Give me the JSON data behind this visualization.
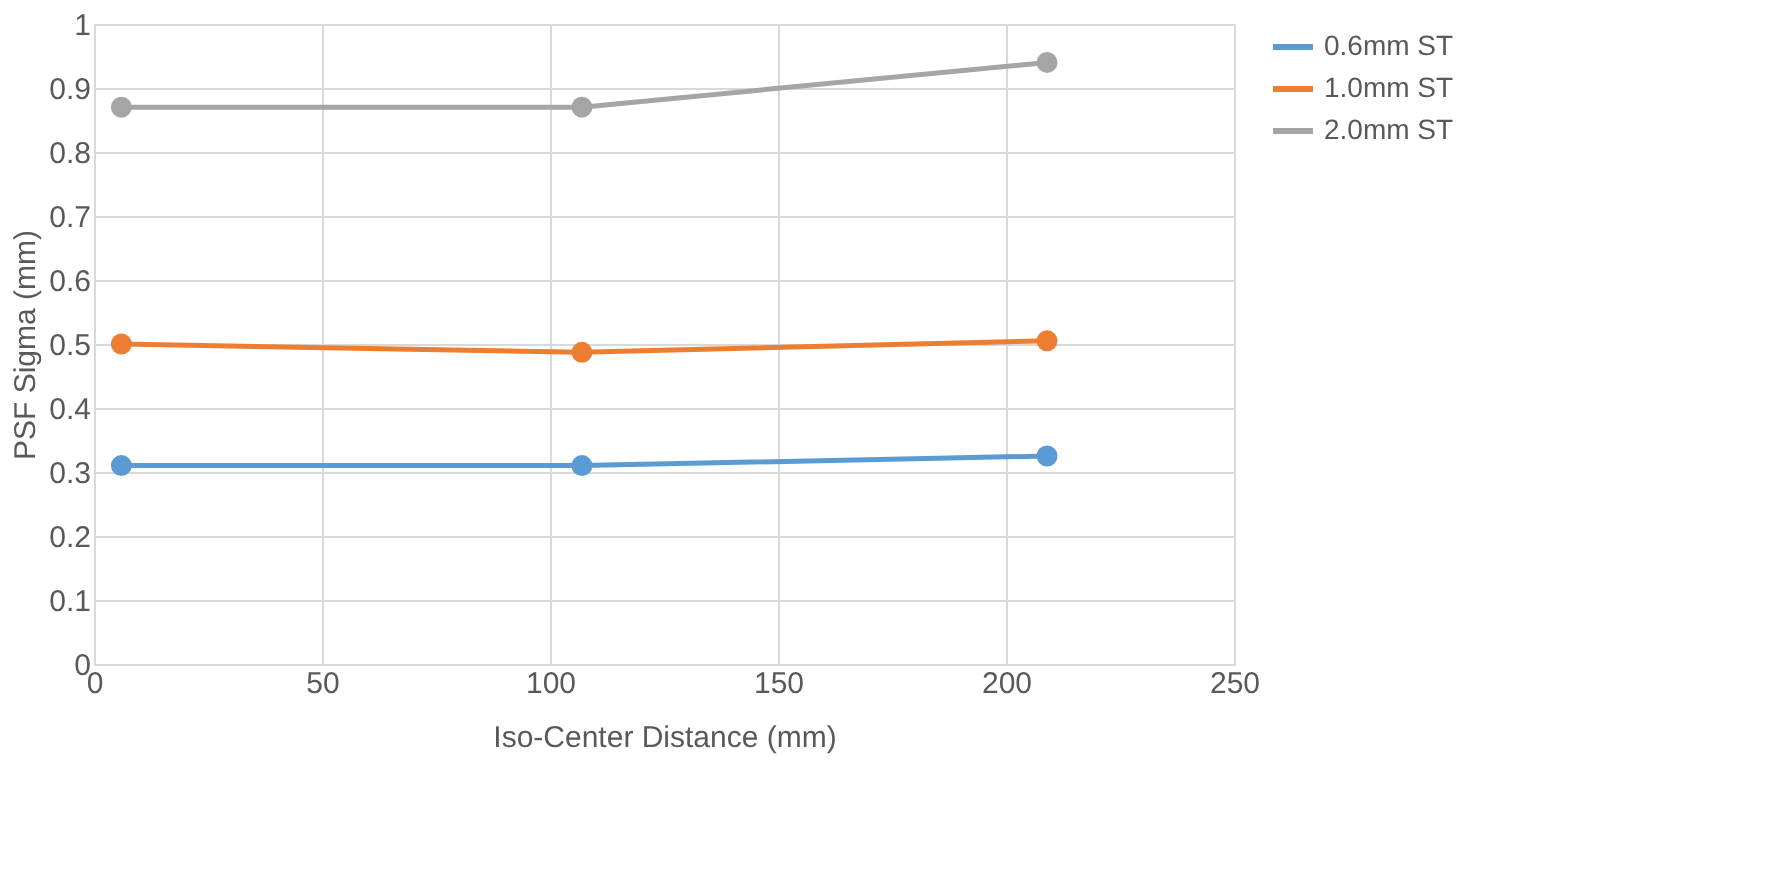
{
  "chart_data": {
    "type": "line",
    "xlabel": "Iso-Center Distance (mm)",
    "ylabel": "PSF Sigma (mm)",
    "x": [
      6,
      107,
      209
    ],
    "series": [
      {
        "name": "0.6mm ST",
        "color": "#5b9bd5",
        "values": [
          0.31,
          0.31,
          0.325
        ]
      },
      {
        "name": "1.0mm ST",
        "color": "#ed7d31",
        "values": [
          0.5,
          0.487,
          0.505
        ]
      },
      {
        "name": "2.0mm ST",
        "color": "#a5a5a5",
        "values": [
          0.87,
          0.87,
          0.94
        ]
      }
    ],
    "xlim": [
      0,
      250
    ],
    "xticks": [
      0,
      50,
      100,
      150,
      200,
      250
    ],
    "ylim": [
      0,
      1
    ],
    "yticks": [
      0,
      0.1,
      0.2,
      0.3,
      0.4,
      0.5,
      0.6,
      0.7,
      0.8,
      0.9,
      1
    ],
    "grid": true,
    "legend": "right",
    "marker": "circle",
    "line_style": "solid"
  }
}
